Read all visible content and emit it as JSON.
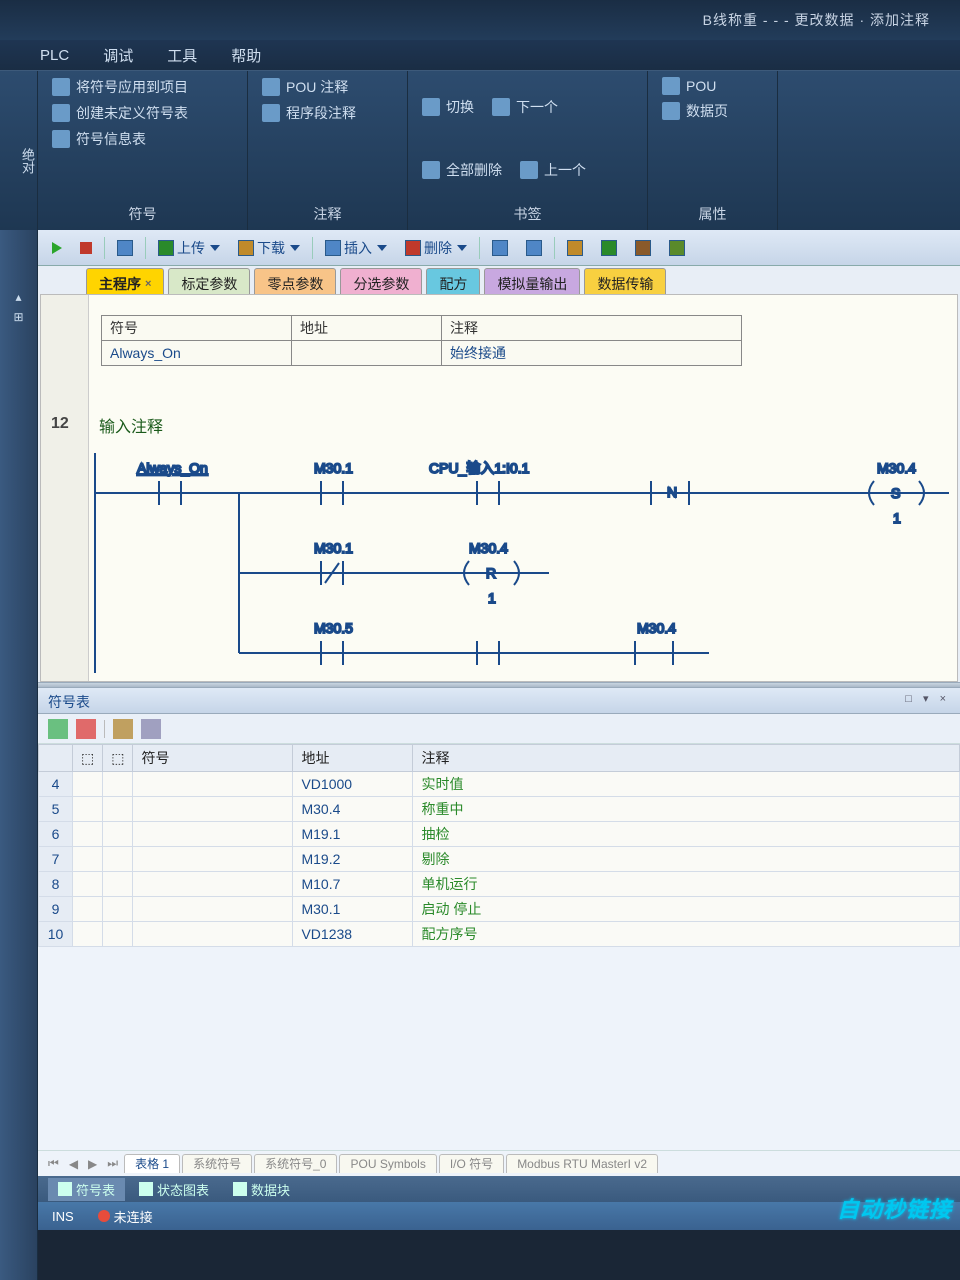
{
  "title_suffix": "B线称重 - - - 更改数据 · 添加注释",
  "menubar": {
    "plc": "PLC",
    "debug": "调试",
    "tools": "工具",
    "help": "帮助"
  },
  "ribbon": {
    "absolute": "绝对",
    "groups": [
      {
        "title": "符号",
        "buttons": [
          "将符号应用到项目",
          "创建未定义符号表",
          "符号信息表"
        ]
      },
      {
        "title": "注释",
        "buttons": [
          "POU 注释",
          "程序段注释"
        ]
      },
      {
        "title": "书签",
        "buttons": [
          "切换",
          "全部删除",
          "下一个",
          "上一个"
        ]
      },
      {
        "title": "属性",
        "buttons": [
          "POU",
          "数据页"
        ]
      }
    ]
  },
  "editor_toolbar": {
    "upload": "上传",
    "download": "下载",
    "insert": "插入",
    "delete": "删除"
  },
  "tabs": [
    {
      "label": "主程序",
      "color": "#ffd400",
      "active": true,
      "closable": true
    },
    {
      "label": "标定参数",
      "color": "#d8e8c8",
      "active": false
    },
    {
      "label": "零点参数",
      "color": "#f8c488",
      "active": false
    },
    {
      "label": "分选参数",
      "color": "#f0b0d0",
      "active": false
    },
    {
      "label": "配方",
      "color": "#68c8e0",
      "active": false
    },
    {
      "label": "模拟量输出",
      "color": "#c8a8e0",
      "active": false
    },
    {
      "label": "数据传输",
      "color": "#f8d040",
      "active": false
    }
  ],
  "symheader": {
    "cols": [
      "符号",
      "地址",
      "注释"
    ],
    "row": {
      "symbol": "Always_On",
      "address": "",
      "comment": "始终接通"
    }
  },
  "rung": {
    "number": "12",
    "comment": "输入注释",
    "c1": "Always_On",
    "c2": "M30.1",
    "c3": "CPU_输入1:I0.1",
    "c4": "N",
    "o1": "M30.4",
    "o1c": "S",
    "o1n": "1",
    "b2a": "M30.1",
    "b2o": "M30.4",
    "b2oc": "R",
    "b2on": "1",
    "b3a": "M30.5",
    "b3o": "M30.4"
  },
  "symbol_panel": {
    "title": "符号表",
    "cols": {
      "sym": "符号",
      "addr": "地址",
      "cmt": "注释"
    },
    "rows": [
      {
        "n": "4",
        "addr": "VD1000",
        "cmt": "实时值"
      },
      {
        "n": "5",
        "addr": "M30.4",
        "cmt": "称重中"
      },
      {
        "n": "6",
        "addr": "M19.1",
        "cmt": "抽检"
      },
      {
        "n": "7",
        "addr": "M19.2",
        "cmt": "剔除"
      },
      {
        "n": "8",
        "addr": "M10.7",
        "cmt": "单机运行"
      },
      {
        "n": "9",
        "addr": "M30.1",
        "cmt": "启动 停止"
      },
      {
        "n": "10",
        "addr": "VD1238",
        "cmt": "配方序号"
      }
    ],
    "sheets": [
      "表格 1",
      "系统符号",
      "系统符号_0",
      "POU Symbols",
      "I/O 符号",
      "Modbus RTU MasterI  v2"
    ]
  },
  "bottom_tabs": {
    "t1": "符号表",
    "t2": "状态图表",
    "t3": "数据块"
  },
  "statusbar": {
    "ins": "INS",
    "conn": "未连接"
  },
  "watermark": "自动秒链接"
}
